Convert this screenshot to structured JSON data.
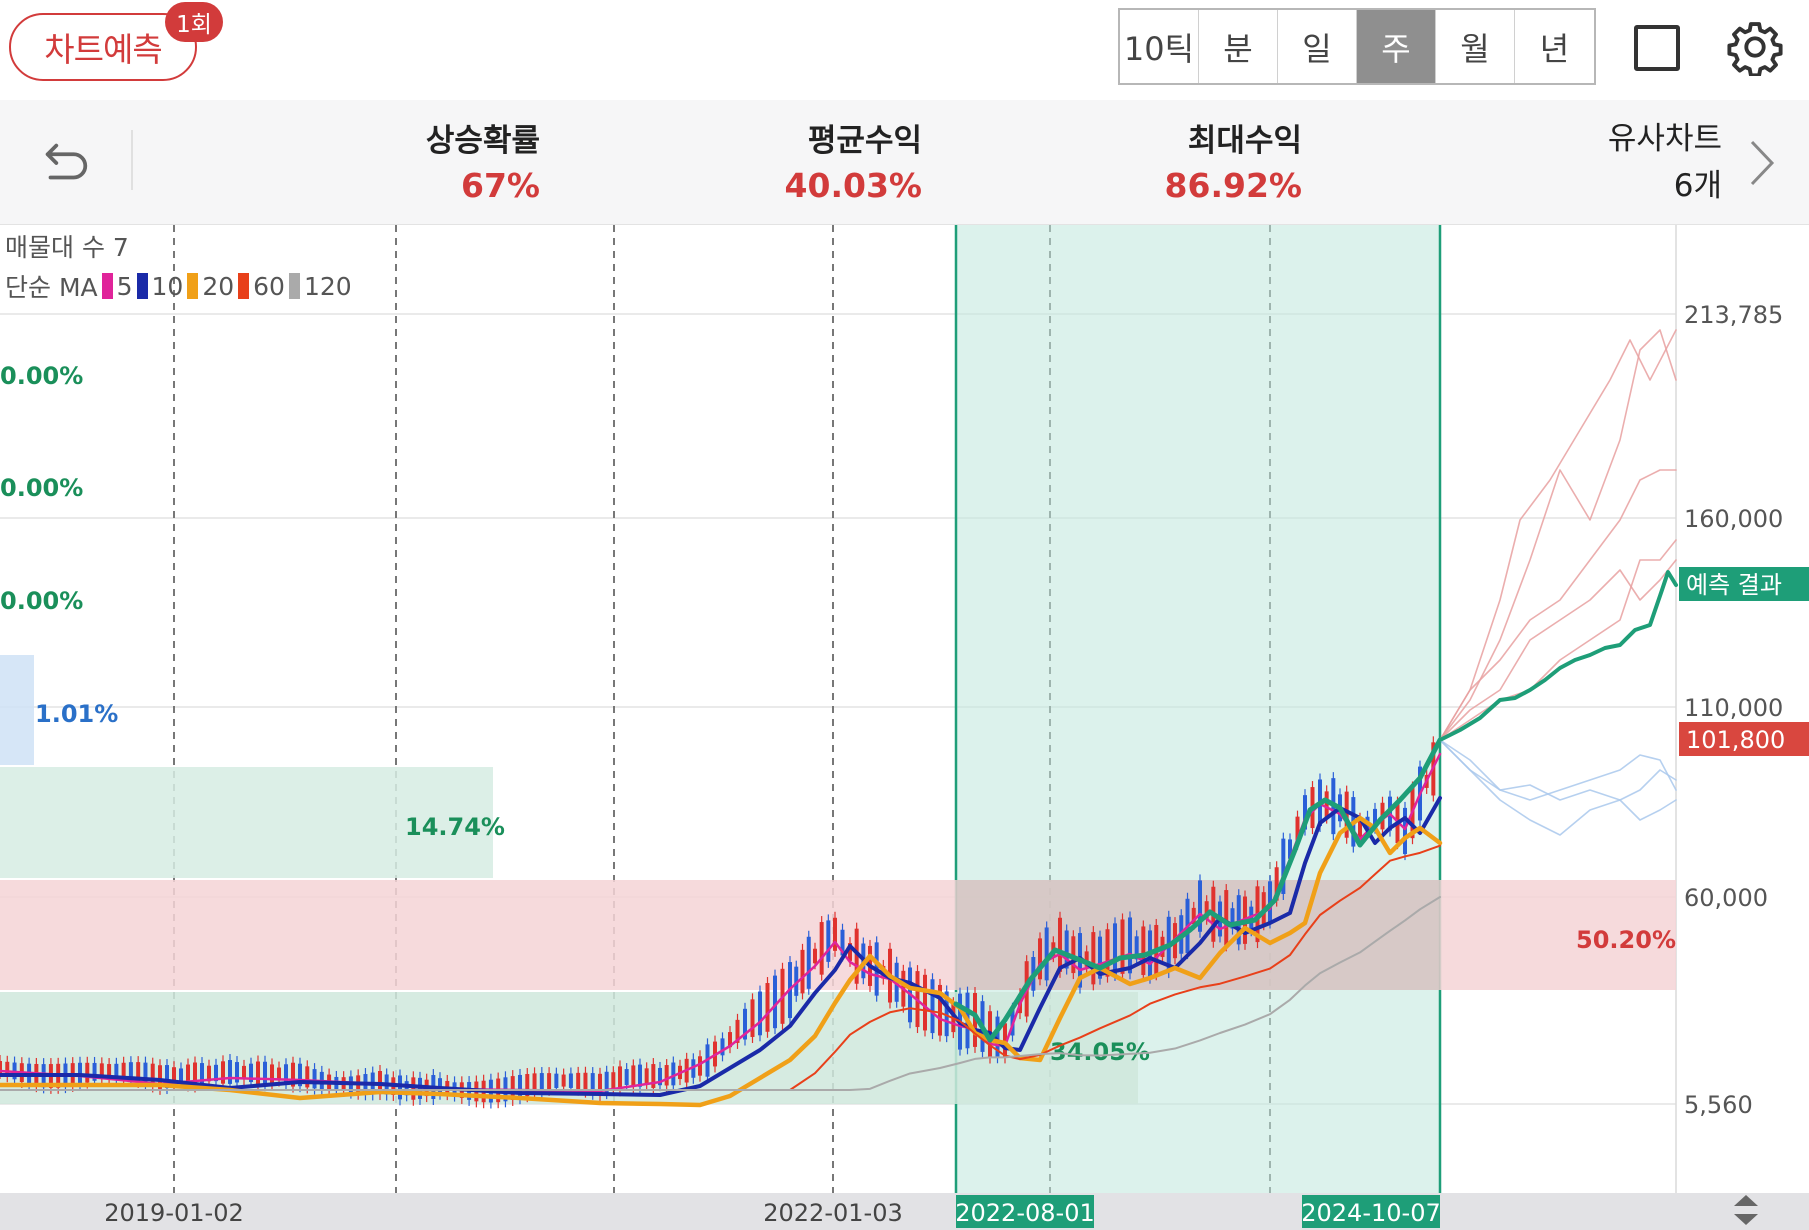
{
  "header": {
    "predict_label": "차트예측",
    "predict_count": "1회",
    "periods": [
      "10틱",
      "분",
      "일",
      "주",
      "월",
      "년"
    ],
    "active_period": "주"
  },
  "stats": {
    "rise_prob": {
      "label": "상승확률",
      "value": "67%"
    },
    "avg_return": {
      "label": "평균수익",
      "value": "40.03%"
    },
    "max_return": {
      "label": "최대수익",
      "value": "86.92%"
    },
    "similar": {
      "label": "유사차트",
      "value": "6개"
    }
  },
  "legend": {
    "volume_profile": "매물대 수 7",
    "ma_title": "단순 MA",
    "ma": [
      {
        "period": "5",
        "color": "#e0249a"
      },
      {
        "period": "10",
        "color": "#1a2aa8"
      },
      {
        "period": "20",
        "color": "#f0a018"
      },
      {
        "period": "60",
        "color": "#e8401a"
      },
      {
        "period": "120",
        "color": "#aaaaaa"
      }
    ]
  },
  "chart_data": {
    "type": "line",
    "subtype": "weekly candlestick with moving averages, volume profile and forecast",
    "y_axis_ticks": [
      "213,785",
      "160,000",
      "110,000",
      "60,000",
      "5,560"
    ],
    "current_price": "101,800",
    "current_price_color": "#d9473f",
    "forecast_label": "예측 결과",
    "forecast_color": "#1e9e78",
    "x_axis_labels": [
      "2019-01-02",
      "2022-01-03"
    ],
    "pattern_range": {
      "start": "2022-08-01",
      "end": "2024-10-07"
    },
    "volume_profile": [
      {
        "value": "0.00%",
        "color": "#1a8f5a"
      },
      {
        "value": "0.00%",
        "color": "#1a8f5a"
      },
      {
        "value": "0.00%",
        "color": "#1a8f5a"
      },
      {
        "value": "1.01%",
        "color": "#2a70c8"
      },
      {
        "value": "14.74%",
        "color": "#1a8f5a"
      },
      {
        "value": "50.20%",
        "color": "#d23b3b"
      },
      {
        "value": "34.05%",
        "color": "#1a8f5a"
      }
    ],
    "series": [
      {
        "name": "5",
        "color": "#e0249a"
      },
      {
        "name": "10",
        "color": "#1a2aa8"
      },
      {
        "name": "20",
        "color": "#f0a018"
      },
      {
        "name": "60",
        "color": "#e8401a"
      },
      {
        "name": "120",
        "color": "#aaaaaa"
      }
    ],
    "price_path": [
      {
        "t": "2019-01-02",
        "y": 8500
      },
      {
        "t": "2020-01-02",
        "y": 6500
      },
      {
        "t": "2021-01-02",
        "y": 9000
      },
      {
        "t": "2022-01-03",
        "y": 40000
      },
      {
        "t": "2022-08-01",
        "y": 28000
      },
      {
        "t": "2023-06-01",
        "y": 45000
      },
      {
        "t": "2024-01-02",
        "y": 68000
      },
      {
        "t": "2024-10-07",
        "y": 101800
      }
    ],
    "forecast_path": [
      101800,
      108000,
      116000,
      124000,
      131000,
      138000,
      146000,
      144000
    ]
  }
}
